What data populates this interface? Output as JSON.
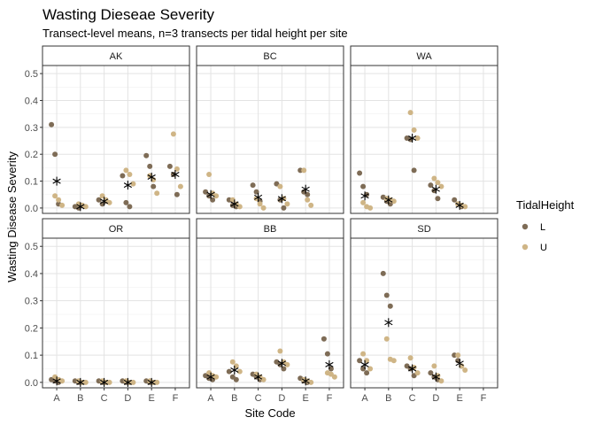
{
  "chart_data": {
    "type": "scatter",
    "title": "Wasting Dieseae Severity",
    "subtitle": "Transect-level means, n=3 transects per tidal height per site",
    "xlabel": "Site Code",
    "ylabel": "Wasting Disease Severity",
    "categories": [
      "A",
      "B",
      "C",
      "D",
      "E",
      "F"
    ],
    "ylim": [
      -0.02,
      0.53
    ],
    "yticks": [
      "0.0",
      "0.1",
      "0.2",
      "0.3",
      "0.4",
      "0.5"
    ],
    "legend": {
      "title": "TidalHeight",
      "placement": "right",
      "entries": [
        {
          "label": "L",
          "color": "#7e6c56"
        },
        {
          "label": "U",
          "color": "#cfb586"
        }
      ]
    },
    "mean_marker": "asterisk",
    "colors": {
      "L": "#7e6c56",
      "U": "#cfb586",
      "mean": "#000000"
    },
    "panels": [
      {
        "name": "AK",
        "points": [
          {
            "site": "A",
            "tide": "L",
            "values": [
              0.31,
              0.2,
              0.015
            ]
          },
          {
            "site": "A",
            "tide": "U",
            "values": [
              0.045,
              0.03,
              0.01
            ]
          },
          {
            "site": "B",
            "tide": "L",
            "values": [
              0.005,
              0.0,
              0.01
            ]
          },
          {
            "site": "B",
            "tide": "U",
            "values": [
              0.015,
              0.01,
              0.005
            ]
          },
          {
            "site": "C",
            "tide": "L",
            "values": [
              0.03,
              0.015,
              0.025
            ]
          },
          {
            "site": "C",
            "tide": "U",
            "values": [
              0.045,
              0.03,
              0.02
            ]
          },
          {
            "site": "D",
            "tide": "L",
            "values": [
              0.12,
              0.02,
              0.005
            ]
          },
          {
            "site": "D",
            "tide": "U",
            "values": [
              0.14,
              0.125,
              0.09
            ]
          },
          {
            "site": "E",
            "tide": "L",
            "values": [
              0.195,
              0.155,
              0.08
            ]
          },
          {
            "site": "E",
            "tide": "U",
            "values": [
              0.12,
              0.105,
              0.055
            ]
          },
          {
            "site": "F",
            "tide": "L",
            "values": [
              0.155,
              0.125,
              0.05
            ]
          },
          {
            "site": "F",
            "tide": "U",
            "values": [
              0.275,
              0.145,
              0.08
            ]
          }
        ],
        "means": [
          {
            "site": "A",
            "value": 0.1
          },
          {
            "site": "B",
            "value": 0.005
          },
          {
            "site": "C",
            "value": 0.025
          },
          {
            "site": "D",
            "value": 0.085
          },
          {
            "site": "E",
            "value": 0.115
          },
          {
            "site": "F",
            "value": 0.125
          }
        ]
      },
      {
        "name": "BC",
        "points": [
          {
            "site": "A",
            "tide": "L",
            "values": [
              0.06,
              0.045,
              0.03
            ]
          },
          {
            "site": "A",
            "tide": "U",
            "values": [
              0.125,
              0.055,
              0.045
            ]
          },
          {
            "site": "B",
            "tide": "L",
            "values": [
              0.03,
              0.01,
              0.005
            ]
          },
          {
            "site": "B",
            "tide": "U",
            "values": [
              0.03,
              0.015,
              0.005
            ]
          },
          {
            "site": "C",
            "tide": "L",
            "values": [
              0.085,
              0.06,
              0.025
            ]
          },
          {
            "site": "C",
            "tide": "U",
            "values": [
              0.035,
              0.015,
              0.0
            ]
          },
          {
            "site": "D",
            "tide": "L",
            "values": [
              0.09,
              0.03,
              0.0
            ]
          },
          {
            "site": "D",
            "tide": "U",
            "values": [
              0.08,
              0.035,
              0.015
            ]
          },
          {
            "site": "E",
            "tide": "L",
            "values": [
              0.14,
              0.06,
              0.05
            ]
          },
          {
            "site": "E",
            "tide": "U",
            "values": [
              0.14,
              0.03,
              0.01
            ]
          }
        ],
        "means": [
          {
            "site": "A",
            "value": 0.05
          },
          {
            "site": "B",
            "value": 0.015
          },
          {
            "site": "C",
            "value": 0.04
          },
          {
            "site": "D",
            "value": 0.035
          },
          {
            "site": "E",
            "value": 0.07
          }
        ]
      },
      {
        "name": "WA",
        "points": [
          {
            "site": "A",
            "tide": "L",
            "values": [
              0.13,
              0.08,
              0.05
            ]
          },
          {
            "site": "A",
            "tide": "U",
            "values": [
              0.02,
              0.005,
              0.0
            ]
          },
          {
            "site": "B",
            "tide": "L",
            "values": [
              0.04,
              0.025,
              0.015
            ]
          },
          {
            "site": "B",
            "tide": "U",
            "values": [
              0.035,
              0.03,
              0.025
            ]
          },
          {
            "site": "C",
            "tide": "L",
            "values": [
              0.26,
              0.255,
              0.14
            ]
          },
          {
            "site": "C",
            "tide": "U",
            "values": [
              0.355,
              0.29,
              0.26
            ]
          },
          {
            "site": "D",
            "tide": "L",
            "values": [
              0.085,
              0.065,
              0.035
            ]
          },
          {
            "site": "D",
            "tide": "U",
            "values": [
              0.11,
              0.095,
              0.08
            ]
          },
          {
            "site": "E",
            "tide": "L",
            "values": [
              0.03,
              0.015,
              0.005
            ]
          },
          {
            "site": "E",
            "tide": "U",
            "values": [
              0.015,
              0.01,
              0.005
            ]
          }
        ],
        "means": [
          {
            "site": "A",
            "value": 0.045
          },
          {
            "site": "B",
            "value": 0.03
          },
          {
            "site": "C",
            "value": 0.26
          },
          {
            "site": "D",
            "value": 0.07
          },
          {
            "site": "E",
            "value": 0.01
          }
        ]
      },
      {
        "name": "OR",
        "points": [
          {
            "site": "A",
            "tide": "L",
            "values": [
              0.01,
              0.005,
              0.0
            ]
          },
          {
            "site": "A",
            "tide": "U",
            "values": [
              0.02,
              0.01,
              0.005
            ]
          },
          {
            "site": "B",
            "tide": "L",
            "values": [
              0.005,
              0.0,
              0.0
            ]
          },
          {
            "site": "B",
            "tide": "U",
            "values": [
              0.005,
              0.0,
              0.0
            ]
          },
          {
            "site": "C",
            "tide": "L",
            "values": [
              0.005,
              0.0,
              0.0
            ]
          },
          {
            "site": "C",
            "tide": "U",
            "values": [
              0.005,
              0.0,
              0.0
            ]
          },
          {
            "site": "D",
            "tide": "L",
            "values": [
              0.005,
              0.0,
              0.0
            ]
          },
          {
            "site": "D",
            "tide": "U",
            "values": [
              0.005,
              0.0,
              0.0
            ]
          },
          {
            "site": "E",
            "tide": "L",
            "values": [
              0.005,
              0.0,
              0.0
            ]
          },
          {
            "site": "E",
            "tide": "U",
            "values": [
              0.005,
              0.0,
              0.0
            ]
          }
        ],
        "means": [
          {
            "site": "A",
            "value": 0.005
          },
          {
            "site": "B",
            "value": 0.0
          },
          {
            "site": "C",
            "value": 0.0
          },
          {
            "site": "D",
            "value": 0.0
          },
          {
            "site": "E",
            "value": 0.0
          }
        ]
      },
      {
        "name": "BB",
        "points": [
          {
            "site": "A",
            "tide": "L",
            "values": [
              0.025,
              0.015,
              0.01
            ]
          },
          {
            "site": "A",
            "tide": "U",
            "values": [
              0.035,
              0.025,
              0.02
            ]
          },
          {
            "site": "B",
            "tide": "L",
            "values": [
              0.04,
              0.02,
              0.01
            ]
          },
          {
            "site": "B",
            "tide": "U",
            "values": [
              0.075,
              0.06,
              0.04
            ]
          },
          {
            "site": "C",
            "tide": "L",
            "values": [
              0.03,
              0.02,
              0.01
            ]
          },
          {
            "site": "C",
            "tide": "U",
            "values": [
              0.03,
              0.02,
              0.01
            ]
          },
          {
            "site": "D",
            "tide": "L",
            "values": [
              0.075,
              0.065,
              0.05
            ]
          },
          {
            "site": "D",
            "tide": "U",
            "values": [
              0.115,
              0.075,
              0.065
            ]
          },
          {
            "site": "E",
            "tide": "L",
            "values": [
              0.015,
              0.005,
              0.0
            ]
          },
          {
            "site": "E",
            "tide": "U",
            "values": [
              0.01,
              0.005,
              0.0
            ]
          },
          {
            "site": "F",
            "tide": "L",
            "values": [
              0.16,
              0.105,
              0.05
            ]
          },
          {
            "site": "F",
            "tide": "U",
            "values": [
              0.035,
              0.03,
              0.02
            ]
          }
        ],
        "means": [
          {
            "site": "A",
            "value": 0.02
          },
          {
            "site": "B",
            "value": 0.045
          },
          {
            "site": "C",
            "value": 0.02
          },
          {
            "site": "D",
            "value": 0.07
          },
          {
            "site": "E",
            "value": 0.005
          },
          {
            "site": "F",
            "value": 0.065
          }
        ]
      },
      {
        "name": "SD",
        "points": [
          {
            "site": "A",
            "tide": "L",
            "values": [
              0.08,
              0.05,
              0.035
            ]
          },
          {
            "site": "A",
            "tide": "U",
            "values": [
              0.105,
              0.08,
              0.05
            ]
          },
          {
            "site": "B",
            "tide": "L",
            "values": [
              0.4,
              0.32,
              0.28
            ]
          },
          {
            "site": "B",
            "tide": "U",
            "values": [
              0.16,
              0.085,
              0.08
            ]
          },
          {
            "site": "C",
            "tide": "L",
            "values": [
              0.06,
              0.05,
              0.025
            ]
          },
          {
            "site": "C",
            "tide": "U",
            "values": [
              0.09,
              0.055,
              0.035
            ]
          },
          {
            "site": "D",
            "tide": "L",
            "values": [
              0.035,
              0.02,
              0.01
            ]
          },
          {
            "site": "D",
            "tide": "U",
            "values": [
              0.06,
              0.025,
              0.005
            ]
          },
          {
            "site": "E",
            "tide": "L",
            "values": [
              0.1,
              0.08,
              0.06
            ]
          },
          {
            "site": "E",
            "tide": "U",
            "values": [
              0.1,
              0.06,
              0.045
            ]
          }
        ],
        "means": [
          {
            "site": "A",
            "value": 0.065
          },
          {
            "site": "B",
            "value": 0.22
          },
          {
            "site": "C",
            "value": 0.05
          },
          {
            "site": "D",
            "value": 0.02
          },
          {
            "site": "E",
            "value": 0.07
          }
        ]
      }
    ]
  }
}
